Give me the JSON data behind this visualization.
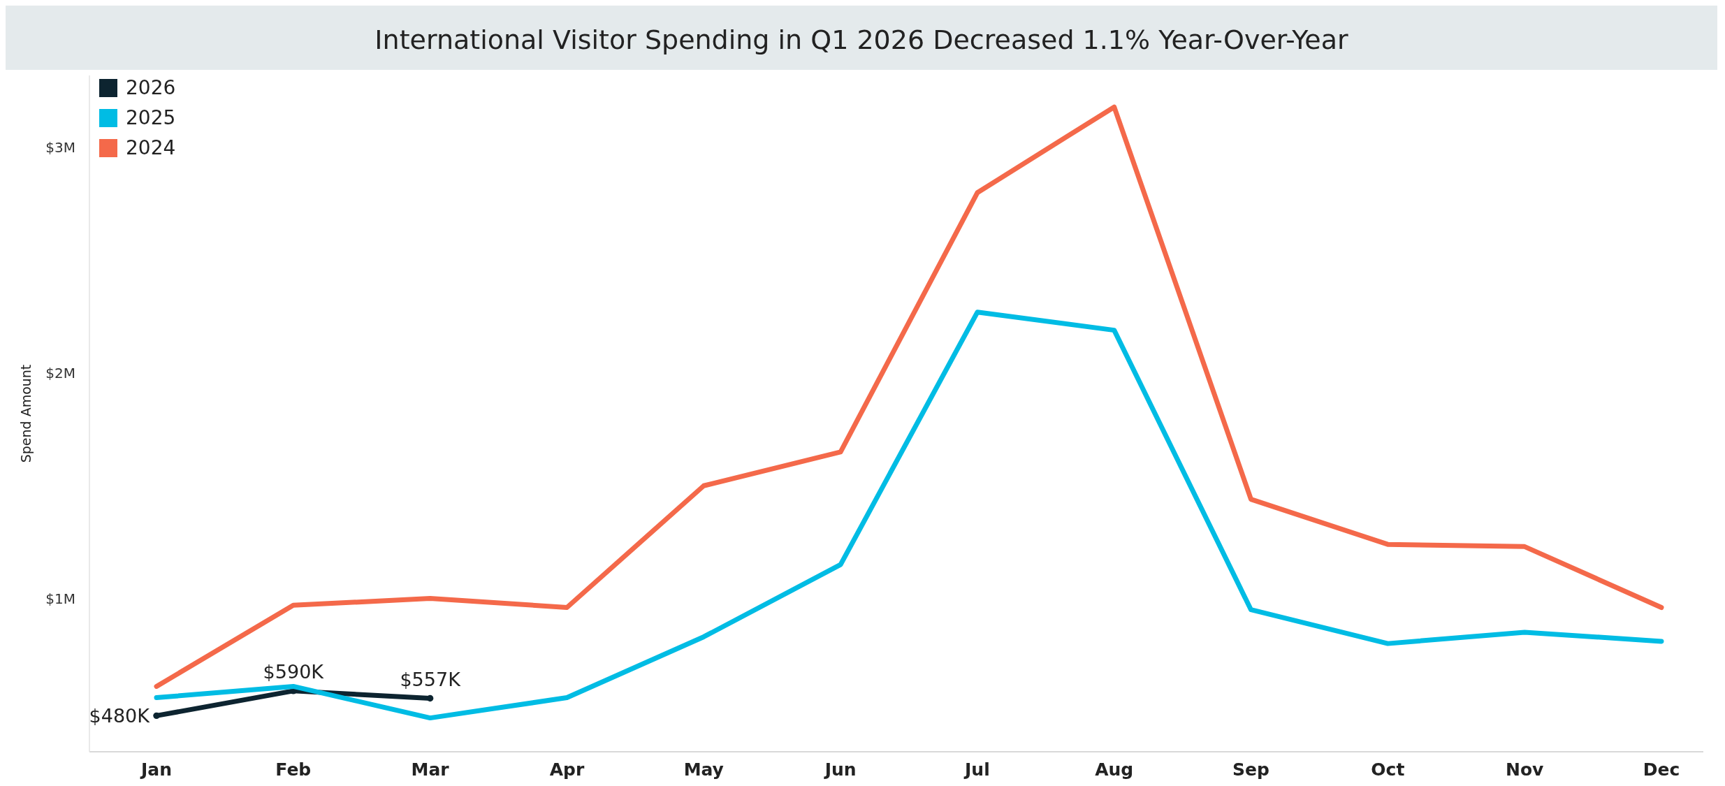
{
  "chart_data": {
    "type": "line",
    "title": "International Visitor Spending in Q1 2026 Decreased 1.1% Year-Over-Year",
    "ylabel": "Spend Amount",
    "categories": [
      "Jan",
      "Feb",
      "Mar",
      "Apr",
      "May",
      "Jun",
      "Jul",
      "Aug",
      "Sep",
      "Oct",
      "Nov",
      "Dec"
    ],
    "series": [
      {
        "name": "2026",
        "color": "#0d2430",
        "marker": "circle",
        "values": [
          480000,
          590000,
          557000,
          null,
          null,
          null,
          null,
          null,
          null,
          null,
          null,
          null
        ],
        "value_labels": [
          "$480K",
          "$590K",
          "$557K",
          null,
          null,
          null,
          null,
          null,
          null,
          null,
          null,
          null
        ]
      },
      {
        "name": "2025",
        "color": "#00bce4",
        "values": [
          560000,
          610000,
          470000,
          560000,
          830000,
          1150000,
          2270000,
          2190000,
          950000,
          800000,
          850000,
          810000
        ]
      },
      {
        "name": "2024",
        "color": "#f4694a",
        "values": [
          610000,
          970000,
          1000000,
          960000,
          1500000,
          1650000,
          2800000,
          3180000,
          1440000,
          1240000,
          1230000,
          960000
        ]
      }
    ],
    "ylim": [
      320000,
      3320000
    ],
    "yticks": [
      {
        "value": 1000000,
        "label": "$1M"
      },
      {
        "value": 2000000,
        "label": "$2M"
      },
      {
        "value": 3000000,
        "label": "$3M"
      }
    ],
    "legend": "top left",
    "grid": false
  }
}
